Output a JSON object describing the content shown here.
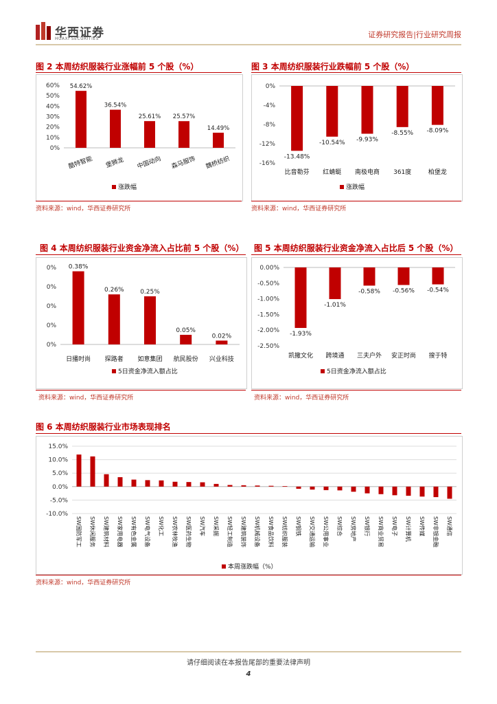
{
  "header": {
    "logo_cn": "华西证券",
    "logo_en": "HUAXI SECURITIES",
    "right_text": "证券研究报告|行业研究周报"
  },
  "figures": {
    "fig2": {
      "title": "图 2 本周纺织服装行业涨幅前 5 个股（%）",
      "source": "资料来源：wind，华西证券研究所"
    },
    "fig3": {
      "title": "图 3 本周纺织服装行业跌幅前 5 个股（%）",
      "source": "资料来源：wind，华西证券研究所"
    },
    "fig4": {
      "title": "图 4 本周纺织服装行业资金净流入占比前 5 个股（%）",
      "source": "资料来源：wind，华西证券研究所"
    },
    "fig5": {
      "title": "图 5 本周纺织服装行业资金净流入占比后 5 个股（%）",
      "source": "资料来源：wind，华西证券研究所"
    },
    "fig6": {
      "title": "图 6 本周纺织服装行业市场表现排名",
      "source": "资料来源：wind，华西证券研究所"
    }
  },
  "chart_data": [
    {
      "id": "fig2",
      "type": "bar",
      "categories": [
        "酷特智能",
        "堡狮龙",
        "中国动向",
        "森马服饰",
        "魏桥纺织"
      ],
      "values": [
        54.62,
        36.54,
        25.61,
        25.57,
        14.49
      ],
      "value_labels": [
        "54.62%",
        "36.54%",
        "25.61%",
        "25.57%",
        "14.49%"
      ],
      "yticks": [
        "60%",
        "50%",
        "40%",
        "30%",
        "20%",
        "10%",
        "0%"
      ],
      "ylim": [
        0,
        60
      ],
      "legend": "涨跌幅",
      "color": "#c00000"
    },
    {
      "id": "fig3",
      "type": "bar",
      "categories": [
        "比音勒芬",
        "红蜻蜓",
        "南极电商",
        "361度",
        "柏堡龙"
      ],
      "values": [
        -13.48,
        -10.54,
        -9.93,
        -8.55,
        -8.09
      ],
      "value_labels": [
        "-13.48%",
        "-10.54%",
        "-9.93%",
        "-8.55%",
        "-8.09%"
      ],
      "yticks": [
        "0%",
        "-4%",
        "-8%",
        "-12%",
        "-16%"
      ],
      "ylim": [
        -16,
        0
      ],
      "legend": "涨跌幅",
      "color": "#c00000"
    },
    {
      "id": "fig4",
      "type": "bar",
      "categories": [
        "日播时尚",
        "探路者",
        "如意集团",
        "航民股份",
        "兴业科技"
      ],
      "values": [
        0.38,
        0.26,
        0.25,
        0.05,
        0.02
      ],
      "value_labels": [
        "0.38%",
        "0.26%",
        "0.25%",
        "0.05%",
        "0.02%"
      ],
      "yticks": [
        "0%",
        "0%",
        "0%",
        "0%",
        "0%"
      ],
      "ylim": [
        0,
        0.4
      ],
      "legend": "5日资金净流入额占比",
      "color": "#c00000"
    },
    {
      "id": "fig5",
      "type": "bar",
      "categories": [
        "凯撒文化",
        "跨境通",
        "三夫户外",
        "安正时尚",
        "搜于特"
      ],
      "values": [
        -1.93,
        -1.01,
        -0.58,
        -0.56,
        -0.54
      ],
      "value_labels": [
        "-1.93%",
        "-1.01%",
        "-0.58%",
        "-0.56%",
        "-0.54%"
      ],
      "yticks": [
        "0.00%",
        "-0.50%",
        "-1.00%",
        "-1.50%",
        "-2.00%",
        "-2.50%"
      ],
      "ylim": [
        -2.5,
        0
      ],
      "legend": "5日资金净流入额占比",
      "color": "#c00000"
    },
    {
      "id": "fig6",
      "type": "bar",
      "categories": [
        "SW国防军工",
        "SW休闲服务",
        "SW建筑材料",
        "SW家用电器",
        "SW有色金属",
        "SW电气设备",
        "SW化工",
        "SW农林牧渔",
        "SW医药生物",
        "SW汽车",
        "SW采掘",
        "SW轻工制造",
        "SW建筑装饰",
        "SW机械设备",
        "SW食品饮料",
        "SW纺织服装",
        "SW钢铁",
        "SW交通运输",
        "SW公用事业",
        "SW综合",
        "SW房地产",
        "SW银行",
        "SW商业贸易",
        "SW电子",
        "SW计算机",
        "SW传媒",
        "SW非银金融",
        "SW通信"
      ],
      "values": [
        11.9,
        11.2,
        4.6,
        3.5,
        2.6,
        2.4,
        2.3,
        1.8,
        1.7,
        1.6,
        1.0,
        0.6,
        0.5,
        0.4,
        0.3,
        0.2,
        -0.8,
        -1.1,
        -1.3,
        -1.4,
        -1.9,
        -2.5,
        -2.8,
        -3.2,
        -3.4,
        -3.7,
        -3.9,
        -4.5
      ],
      "yticks": [
        "15.0%",
        "10.0%",
        "5.0%",
        "0.0%",
        "-5.0%",
        "-10.0%"
      ],
      "ylim": [
        -10,
        15
      ],
      "legend": "本周涨跌幅（%）",
      "color": "#c00000"
    }
  ],
  "footer": {
    "disclaimer": "请仔细阅读在本报告尾部的重要法律声明",
    "page_number": "4"
  }
}
